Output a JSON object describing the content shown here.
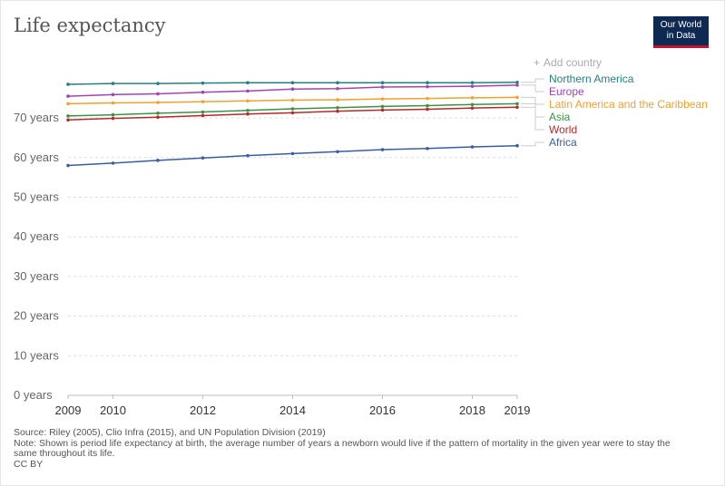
{
  "title": "Life expectancy",
  "logo": {
    "line1": "Our World",
    "line2": "in Data"
  },
  "controls": {
    "add_country": "Add country"
  },
  "chart_data": {
    "type": "line",
    "title": "Life expectancy",
    "x": [
      2009,
      2010,
      2011,
      2012,
      2013,
      2014,
      2015,
      2016,
      2017,
      2018,
      2019
    ],
    "x_ticks": [
      "2009",
      "2010",
      "2012",
      "2014",
      "2016",
      "2018",
      "2019"
    ],
    "x_tick_values": [
      2009,
      2010,
      2012,
      2014,
      2016,
      2018,
      2019
    ],
    "y_ticks": [
      "0 years",
      "10 years",
      "20 years",
      "30 years",
      "40 years",
      "50 years",
      "60 years",
      "70 years"
    ],
    "y_tick_values": [
      0,
      10,
      20,
      30,
      40,
      50,
      60,
      70
    ],
    "ylim": [
      0,
      80
    ],
    "grid": "horizontal-dashed",
    "legend_position": "right",
    "series": [
      {
        "name": "Northern America",
        "color": "#26807d",
        "values": [
          78.5,
          78.7,
          78.7,
          78.8,
          78.9,
          78.9,
          78.9,
          78.9,
          78.9,
          78.9,
          79.0
        ]
      },
      {
        "name": "Europe",
        "color": "#a044b8",
        "values": [
          75.5,
          75.9,
          76.1,
          76.5,
          76.8,
          77.3,
          77.4,
          77.8,
          77.9,
          78.0,
          78.3
        ]
      },
      {
        "name": "Latin America and the Caribbean",
        "color": "#f0a131",
        "values": [
          73.6,
          73.8,
          73.9,
          74.1,
          74.3,
          74.5,
          74.6,
          74.8,
          74.9,
          75.1,
          75.2
        ]
      },
      {
        "name": "Asia",
        "color": "#3d9146",
        "values": [
          70.5,
          70.8,
          71.2,
          71.5,
          71.9,
          72.3,
          72.6,
          72.9,
          73.1,
          73.4,
          73.6
        ]
      },
      {
        "name": "World",
        "color": "#b62a2a",
        "values": [
          69.5,
          69.9,
          70.2,
          70.6,
          71.0,
          71.3,
          71.7,
          72.0,
          72.2,
          72.5,
          72.7
        ]
      },
      {
        "name": "Africa",
        "color": "#3a5ca5",
        "values": [
          58.0,
          58.6,
          59.3,
          59.9,
          60.5,
          61.0,
          61.5,
          62.0,
          62.3,
          62.7,
          63.0
        ]
      }
    ]
  },
  "footer": {
    "source": "Source: Riley (2005), Clio Infra (2015), and UN Population Division (2019)",
    "note": "Note: Shown is period life expectancy at birth, the average number of years a newborn would live if the pattern of mortality in the given year were to stay the same throughout its life.",
    "license": "CC BY"
  }
}
